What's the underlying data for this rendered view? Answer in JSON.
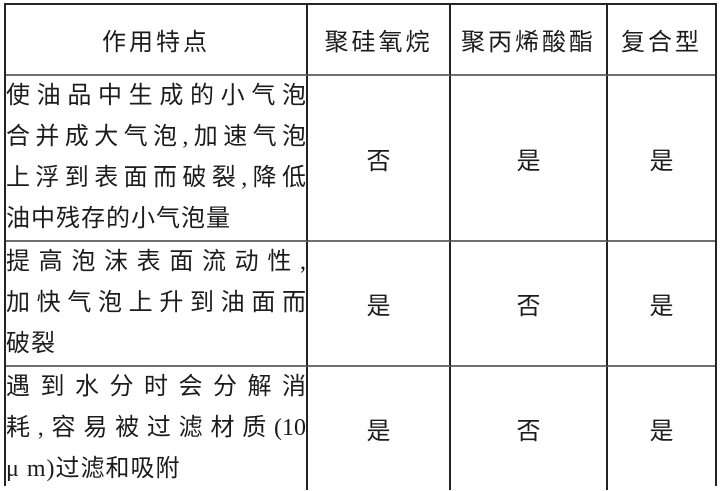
{
  "table": {
    "columns": [
      {
        "label": "作用特点"
      },
      {
        "label": "聚硅氧烷"
      },
      {
        "label": "聚丙烯酸酯"
      },
      {
        "label": "复合型"
      }
    ],
    "rows": [
      {
        "feature_text": "使油品中生成的小气泡合并成大气泡,加速气泡上浮到表面而破裂,降低油中残存的小气泡量",
        "feature_lines": [
          "使油品中生成的小气泡",
          "合并成大气泡,加速气泡",
          "上浮到表面而破裂,降低",
          "油中残存的小气泡量"
        ],
        "values": [
          "否",
          "是",
          "是"
        ]
      },
      {
        "feature_text": "提高泡沫表面流动性,加快气泡上升到油面而破裂",
        "feature_lines": [
          "提高泡沫表面流动性,",
          "加快气泡上升到油面而",
          "破裂"
        ],
        "values": [
          "是",
          "否",
          "是"
        ]
      },
      {
        "feature_text": "遇到水分时会分解消耗,容易被过滤材质(10μ m)过滤和吸附",
        "feature_lines": [
          "遇到水分时会分解消",
          "耗,容易被过滤材质(10",
          "μ m)过滤和吸附"
        ],
        "values": [
          "是",
          "否",
          "是"
        ]
      }
    ],
    "colors": {
      "border_dark": "#242424",
      "border_light": "#6f6f6f",
      "text": "#1c1c1c",
      "background": "#ffffff"
    }
  }
}
